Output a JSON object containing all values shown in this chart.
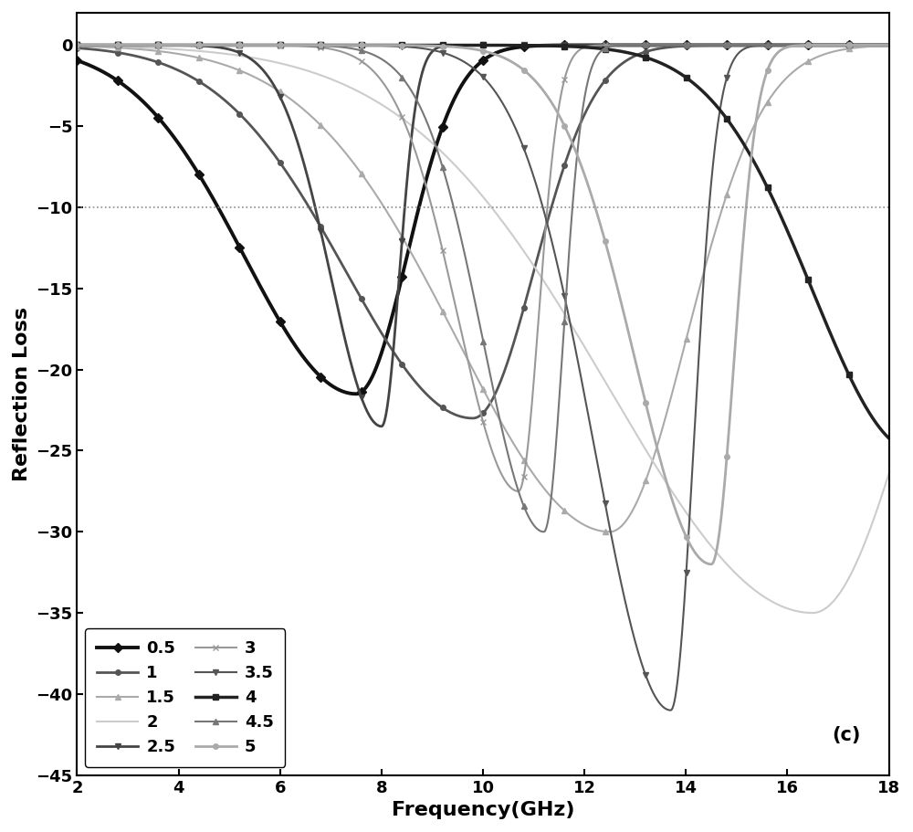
{
  "xlabel": "Frequency(GHz)",
  "ylabel": "Reflection Loss",
  "xlim": [
    2,
    18
  ],
  "ylim": [
    -45,
    2
  ],
  "yticks": [
    0,
    -5,
    -10,
    -15,
    -20,
    -25,
    -30,
    -35,
    -40,
    -45
  ],
  "xticks": [
    2,
    4,
    6,
    8,
    10,
    12,
    14,
    16,
    18
  ],
  "dotted_line_y": -10,
  "annotation": "(c)",
  "curve_params": [
    {
      "label": "0.5",
      "color": "#111111",
      "lw": 2.8,
      "marker": "D",
      "ms": 5,
      "peak": 7.5,
      "depth": -21.5,
      "sigma_l": 2.2,
      "sigma_r": 1.0,
      "sharp": false
    },
    {
      "label": "1",
      "color": "#555555",
      "lw": 2.0,
      "marker": "o",
      "ms": 4,
      "peak": 9.8,
      "depth": -23.0,
      "sigma_l": 2.5,
      "sigma_r": 1.2,
      "sharp": false
    },
    {
      "label": "1.5",
      "color": "#aaaaaa",
      "lw": 1.5,
      "marker": "^",
      "ms": 4,
      "peak": 12.5,
      "depth": -30.0,
      "sigma_l": 3.0,
      "sigma_r": 1.5,
      "sharp": false
    },
    {
      "label": "2",
      "color": "#cccccc",
      "lw": 1.5,
      "marker": "none",
      "ms": 0,
      "peak": 16.5,
      "depth": -35.0,
      "sigma_l": 4.0,
      "sigma_r": 2.0,
      "sharp": false
    },
    {
      "label": "2.5",
      "color": "#444444",
      "lw": 2.0,
      "marker": "v",
      "ms": 4,
      "peak": 8.0,
      "depth": -23.5,
      "sigma_l": 1.0,
      "sigma_r": 0.35,
      "sharp": true
    },
    {
      "label": "3",
      "color": "#999999",
      "lw": 1.5,
      "marker": "x",
      "ms": 4,
      "peak": 10.7,
      "depth": -27.5,
      "sigma_l": 1.2,
      "sigma_r": 0.4,
      "sharp": true
    },
    {
      "label": "3.5",
      "color": "#555555",
      "lw": 1.5,
      "marker": "v",
      "ms": 4,
      "peak": 13.7,
      "depth": -41.0,
      "sigma_l": 1.5,
      "sigma_r": 0.45,
      "sharp": true
    },
    {
      "label": "4",
      "color": "#222222",
      "lw": 2.5,
      "marker": "s",
      "ms": 5,
      "peak": 18.5,
      "depth": -25.0,
      "sigma_l": 2.0,
      "sigma_r": 0.6,
      "sharp": true
    },
    {
      "label": "4.5",
      "color": "#777777",
      "lw": 1.5,
      "marker": "^",
      "ms": 4,
      "peak": 11.2,
      "depth": -30.0,
      "sigma_l": 1.2,
      "sigma_r": 0.38,
      "sharp": true
    },
    {
      "label": "5",
      "color": "#aaaaaa",
      "lw": 2.0,
      "marker": "o",
      "ms": 4,
      "peak": 14.5,
      "depth": -32.0,
      "sigma_l": 1.5,
      "sigma_r": 0.45,
      "sharp": true
    }
  ]
}
